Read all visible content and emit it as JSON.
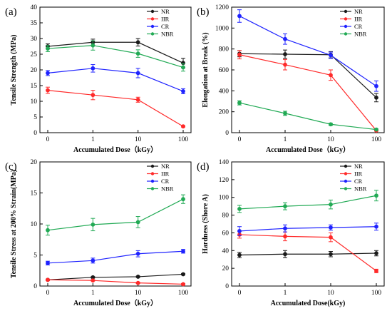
{
  "series_colors": {
    "NR": "#1a1a1a",
    "IIR": "#ff2a2a",
    "CR": "#1f23ff",
    "NBR": "#22aa55"
  },
  "chart_data": [
    {
      "type": "line",
      "panel_label": "(a)",
      "x_ticks": [
        "0",
        "1",
        "10",
        "100"
      ],
      "xlabel": "Accumulated Dose（kGy）",
      "ylabel": "Tensile Strength (MPa)",
      "ylim": [
        0,
        40
      ],
      "yticks": [
        0,
        5,
        10,
        15,
        20,
        25,
        30,
        35,
        40
      ],
      "legend_position": "top-right",
      "series": [
        {
          "name": "NR",
          "values": [
            27.5,
            28.8,
            28.8,
            22.2
          ],
          "errors": [
            0.8,
            1.0,
            1.2,
            1.5
          ]
        },
        {
          "name": "IIR",
          "values": [
            13.5,
            12.0,
            10.5,
            2.0
          ],
          "errors": [
            1.0,
            1.5,
            0.8,
            0.2
          ]
        },
        {
          "name": "CR",
          "values": [
            19.0,
            20.5,
            19.0,
            13.2
          ],
          "errors": [
            0.8,
            1.2,
            1.5,
            0.8
          ]
        },
        {
          "name": "NBR",
          "values": [
            26.8,
            27.8,
            25.2,
            20.8
          ],
          "errors": [
            1.0,
            1.5,
            1.2,
            1.2
          ]
        }
      ]
    },
    {
      "type": "line",
      "panel_label": "(b)",
      "x_ticks": [
        "0",
        "1",
        "10",
        "100"
      ],
      "xlabel": "Accumulated Dose（kGy）",
      "ylabel": "Elongation at Break (%)",
      "ylim": [
        0,
        1200
      ],
      "yticks": [
        0,
        200,
        400,
        600,
        800,
        1000,
        1200
      ],
      "legend_position": "top-right",
      "series": [
        {
          "name": "NR",
          "values": [
            755,
            750,
            745,
            335
          ],
          "errors": [
            30,
            40,
            30,
            40
          ]
        },
        {
          "name": "IIR",
          "values": [
            745,
            650,
            550,
            20
          ],
          "errors": [
            40,
            50,
            50,
            5
          ]
        },
        {
          "name": "CR",
          "values": [
            1115,
            895,
            740,
            445
          ],
          "errors": [
            60,
            50,
            30,
            50
          ]
        },
        {
          "name": "NBR",
          "values": [
            285,
            185,
            80,
            30
          ],
          "errors": [
            20,
            20,
            10,
            5
          ]
        }
      ]
    },
    {
      "type": "line",
      "panel_label": "(c)",
      "x_ticks": [
        "0",
        "1",
        "10",
        "100"
      ],
      "xlabel": "Accumulated Dose（kGy）",
      "ylabel": "Tensile Stress at 200% Strain(MPa)",
      "ylim": [
        0,
        20
      ],
      "yticks": [
        0,
        5,
        10,
        15,
        20
      ],
      "legend_position": "top-right",
      "series": [
        {
          "name": "NR",
          "values": [
            1.0,
            1.4,
            1.5,
            1.9
          ],
          "errors": [
            0.1,
            0.1,
            0.1,
            0.1
          ]
        },
        {
          "name": "IIR",
          "values": [
            1.0,
            0.9,
            0.5,
            0.3
          ],
          "errors": [
            0.1,
            0.1,
            0.1,
            0.1
          ]
        },
        {
          "name": "CR",
          "values": [
            3.7,
            4.1,
            5.2,
            5.6
          ],
          "errors": [
            0.3,
            0.4,
            0.5,
            0.3
          ]
        },
        {
          "name": "NBR",
          "values": [
            9.0,
            9.9,
            10.3,
            14.0
          ],
          "errors": [
            0.8,
            1.0,
            0.9,
            0.7
          ]
        }
      ]
    },
    {
      "type": "line",
      "panel_label": "(d)",
      "x_ticks": [
        "0",
        "1",
        "10",
        "100"
      ],
      "xlabel": "Accumulated Dose(kGy)",
      "ylabel": "Hardness (Shore A)",
      "ylim": [
        0,
        140
      ],
      "yticks": [
        0,
        20,
        40,
        60,
        80,
        100,
        120,
        140
      ],
      "legend_position": "top-right",
      "series": [
        {
          "name": "NR",
          "values": [
            35,
            36,
            36,
            37
          ],
          "errors": [
            3,
            4,
            3,
            3
          ]
        },
        {
          "name": "IIR",
          "values": [
            58,
            56,
            55,
            17
          ],
          "errors": [
            4,
            5,
            5,
            2
          ]
        },
        {
          "name": "CR",
          "values": [
            62,
            65,
            66,
            67
          ],
          "errors": [
            5,
            4,
            3,
            4
          ]
        },
        {
          "name": "NBR",
          "values": [
            87,
            90,
            92,
            102
          ],
          "errors": [
            4,
            4,
            5,
            6
          ]
        }
      ]
    }
  ]
}
